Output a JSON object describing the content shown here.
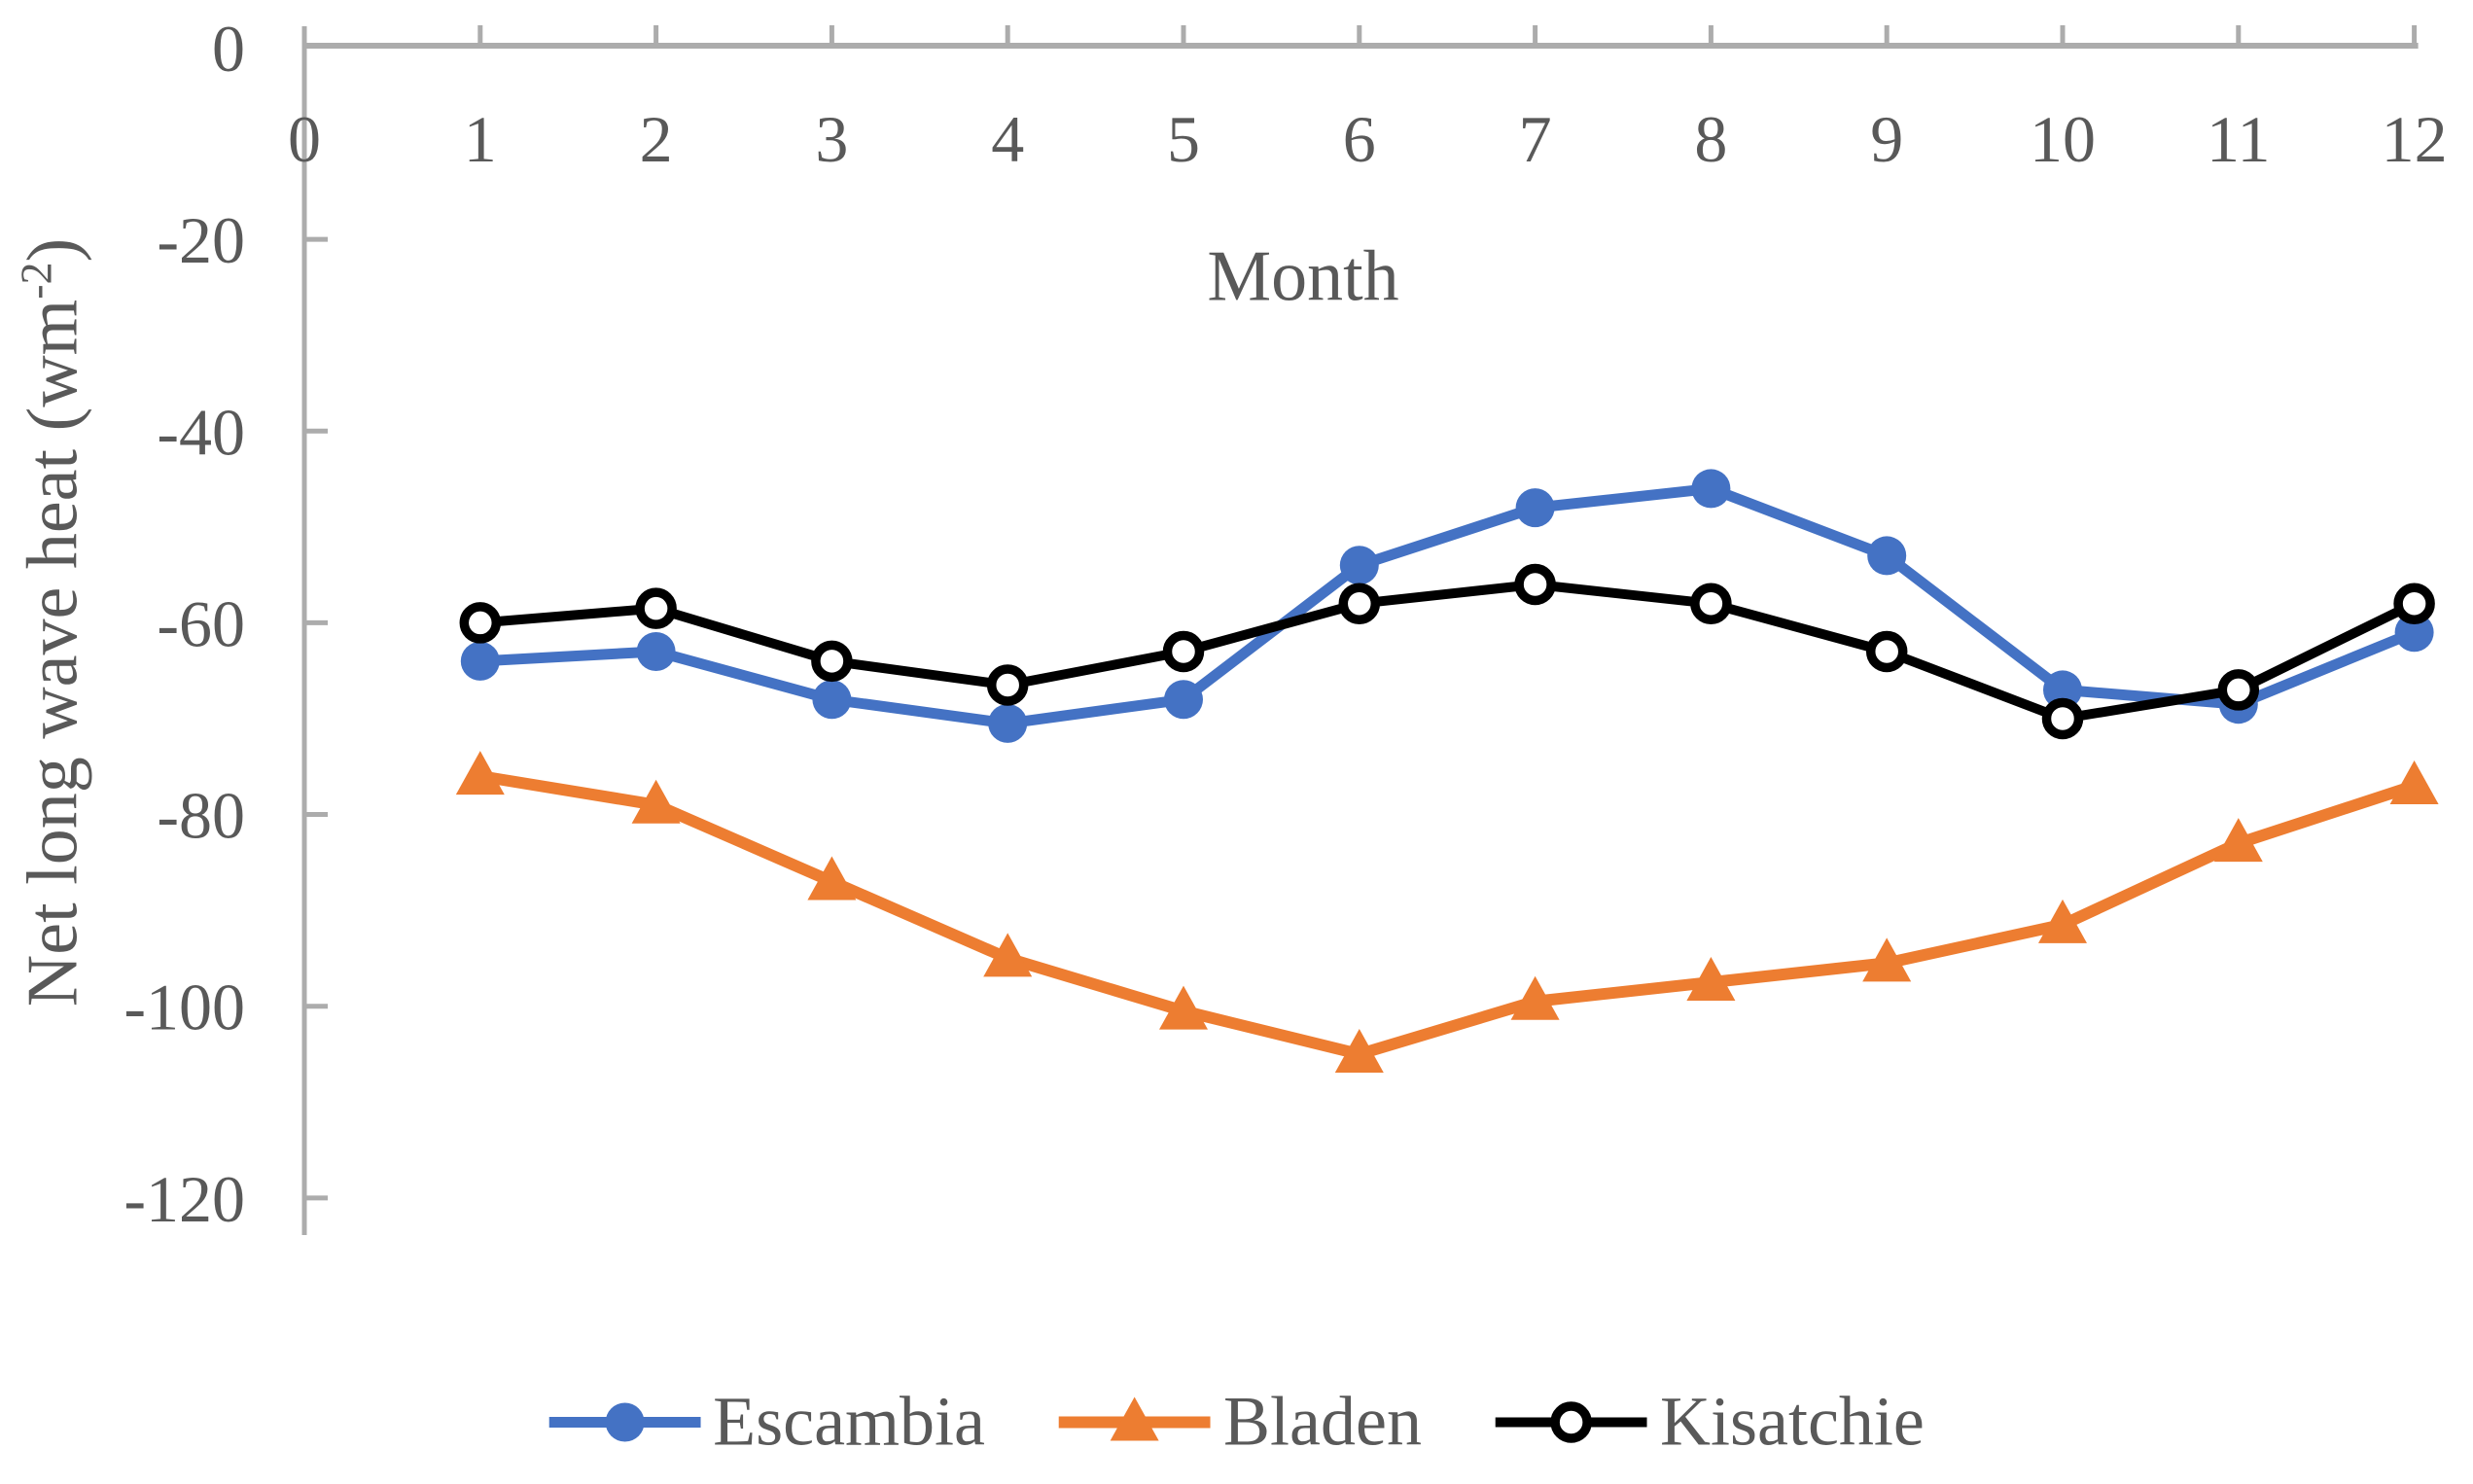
{
  "chart_data": {
    "type": "line",
    "title": "",
    "xlabel": "Month",
    "ylabel": "Net long wave heat (wm⁻²)",
    "ylabel_main": "Net long wave heat (wm",
    "ylabel_sup": "-2",
    "ylabel_close": ")",
    "x": [
      1,
      2,
      3,
      4,
      5,
      6,
      7,
      8,
      9,
      10,
      11,
      12
    ],
    "x_tick_labels": [
      "0",
      "1",
      "2",
      "3",
      "4",
      "5",
      "6",
      "7",
      "8",
      "9",
      "10",
      "11",
      "12"
    ],
    "y_ticks": [
      0,
      -20,
      -40,
      -60,
      -80,
      -100,
      -120
    ],
    "xlim": [
      0,
      12
    ],
    "ylim": [
      -120,
      0
    ],
    "grid": false,
    "legend_position": "bottom",
    "series": [
      {
        "name": "Escambia",
        "color": "#4472C4",
        "marker": "circle-filled",
        "values": [
          -64,
          -63,
          -68,
          -70.5,
          -68,
          -54,
          -48,
          -46,
          -53,
          -67,
          -68.5,
          -61
        ]
      },
      {
        "name": "Bladen",
        "color": "#ED7D31",
        "marker": "triangle-filled",
        "values": [
          -76,
          -79,
          -87,
          -95,
          -100.5,
          -105,
          -99.5,
          -97.5,
          -95.5,
          -91.5,
          -83,
          -77
        ]
      },
      {
        "name": "Kisatchie",
        "color": "#000000",
        "marker": "circle-open",
        "values": [
          -60,
          -58.5,
          -64,
          -66.5,
          -63,
          -58,
          -56,
          -58,
          -63,
          -70,
          -67,
          -58
        ]
      }
    ],
    "axis_color": "#ACACAC",
    "text_color": "#595959"
  }
}
